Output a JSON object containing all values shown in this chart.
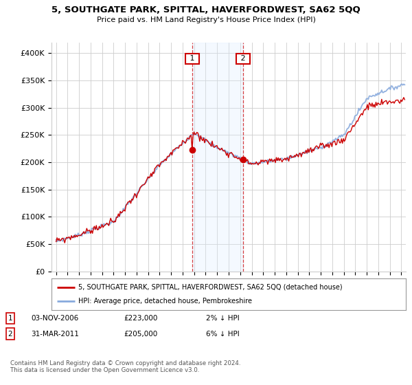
{
  "title": "5, SOUTHGATE PARK, SPITTAL, HAVERFORDWEST, SA62 5QQ",
  "subtitle": "Price paid vs. HM Land Registry's House Price Index (HPI)",
  "ylabel_ticks": [
    "£0",
    "£50K",
    "£100K",
    "£150K",
    "£200K",
    "£250K",
    "£300K",
    "£350K",
    "£400K"
  ],
  "ytick_values": [
    0,
    50000,
    100000,
    150000,
    200000,
    250000,
    300000,
    350000,
    400000
  ],
  "ylim": [
    0,
    420000
  ],
  "xlim_start": 1994.6,
  "xlim_end": 2025.4,
  "sale1_date": 2006.84,
  "sale1_price": 223000,
  "sale2_date": 2011.25,
  "sale2_price": 205000,
  "legend_price_label": "5, SOUTHGATE PARK, SPITTAL, HAVERFORDWEST, SA62 5QQ (detached house)",
  "legend_hpi_label": "HPI: Average price, detached house, Pembrokeshire",
  "annotation1_date": "03-NOV-2006",
  "annotation1_price": "£223,000",
  "annotation1_pct": "2% ↓ HPI",
  "annotation2_date": "31-MAR-2011",
  "annotation2_price": "£205,000",
  "annotation2_pct": "6% ↓ HPI",
  "footnote": "Contains HM Land Registry data © Crown copyright and database right 2024.\nThis data is licensed under the Open Government Licence v3.0.",
  "price_color": "#cc0000",
  "hpi_color": "#88aadd",
  "shade_color": "#ddeeff",
  "background_color": "#ffffff",
  "grid_color": "#cccccc",
  "xtick_years": [
    1995,
    1996,
    1997,
    1998,
    1999,
    2000,
    2001,
    2002,
    2003,
    2004,
    2005,
    2006,
    2007,
    2008,
    2009,
    2010,
    2011,
    2012,
    2013,
    2014,
    2015,
    2016,
    2017,
    2018,
    2019,
    2020,
    2021,
    2022,
    2023,
    2024,
    2025
  ]
}
